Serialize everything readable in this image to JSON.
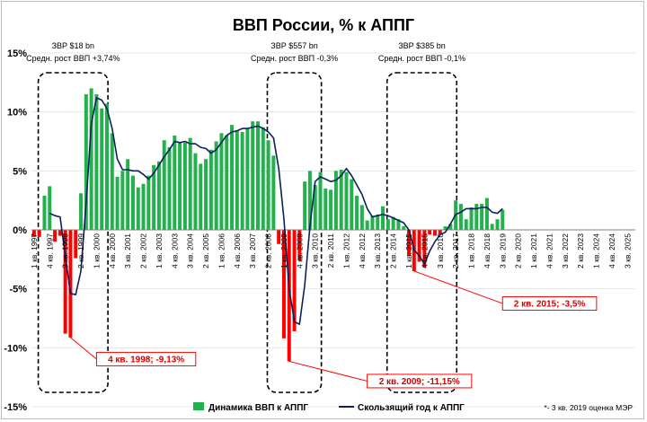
{
  "chart_data": {
    "type": "bar",
    "title": "ВВП России, % к АППГ",
    "ylim": [
      -15,
      15
    ],
    "yticks": [
      {
        "value": 15,
        "label": "15%"
      },
      {
        "value": 10,
        "label": "10%"
      },
      {
        "value": 5,
        "label": "5%"
      },
      {
        "value": 0,
        "label": "0%"
      },
      {
        "value": -5,
        "label": "-5%"
      },
      {
        "value": -10,
        "label": "-10%"
      },
      {
        "value": -15,
        "label": "-15%"
      }
    ],
    "x_start": "1997 Q1",
    "x_end": "2025 Q4",
    "xtick_labels": [
      "1 кв. 1997",
      "4 кв. 1997",
      "3 кв. 1998",
      "2 кв. 1999",
      "1 кв. 2000",
      "4 кв. 2000",
      "3 кв. 2001",
      "2 кв. 2002",
      "1 кв. 2003",
      "4 кв. 2003",
      "3 кв. 2004",
      "2 кв. 2005",
      "1 кв. 2006",
      "4 кв. 2006",
      "3 кв. 2007",
      "2 кв. 2008",
      "1 кв. 2009",
      "4 кв. 2009",
      "3 кв. 2010",
      "2 кв. 2011",
      "1 кв. 2012",
      "4 кв. 2012",
      "3 кв. 2013",
      "2 кв. 2014",
      "1 кв. 2015",
      "4 кв. 2015",
      "3 кв. 2016",
      "2 кв. 2017",
      "1 кв. 2018",
      "4 кв. 2018",
      "3 кв. 2019",
      "2 кв. 2020",
      "1 кв. 2021",
      "4 кв. 2021",
      "3 кв. 2022",
      "2 кв. 2023",
      "1 кв. 2024",
      "4 кв. 2024",
      "3 кв. 2025"
    ],
    "series": [
      {
        "name": "Динамика ВВП к АППГ",
        "color_positive": "#22b14c",
        "color_negative": "#ff0000",
        "values": [
          -0.6,
          -0.6,
          2.9,
          3.7,
          -1.0,
          -0.5,
          -8.8,
          -9.13,
          -2.4,
          3.1,
          11.5,
          12.0,
          11.5,
          10.3,
          10.7,
          8.2,
          4.5,
          5.0,
          6.0,
          4.6,
          3.6,
          3.9,
          4.6,
          5.5,
          5.8,
          7.6,
          7.0,
          8.0,
          7.4,
          7.4,
          7.8,
          6.5,
          5.6,
          6.0,
          6.8,
          7.5,
          8.2,
          8.0,
          8.9,
          8.4,
          8.3,
          8.6,
          9.2,
          9.2,
          8.7,
          7.6,
          6.3,
          -1.2,
          -9.2,
          -11.15,
          -8.6,
          -2.6,
          4.1,
          5.0,
          3.8,
          4.9,
          3.5,
          3.4,
          5.0,
          5.1,
          4.9,
          4.3,
          2.9,
          2.1,
          0.8,
          1.2,
          1.3,
          2.0,
          0.9,
          1.1,
          0.9,
          0.3,
          -2.2,
          -3.5,
          -2.7,
          -3.2,
          -0.4,
          -0.5,
          -0.4,
          0.3,
          0.5,
          2.5,
          2.2,
          0.9,
          1.9,
          2.2,
          2.2,
          2.7,
          0.5,
          0.9,
          1.7
        ]
      },
      {
        "name": "Скользящий год к АППГ",
        "color": "#0b1f5c",
        "values": [
          null,
          null,
          null,
          1.4,
          1.2,
          1.1,
          -2.2,
          -5.4,
          -5.5,
          -3.5,
          2.2,
          9.0,
          11.2,
          11.0,
          10.3,
          8.6,
          6.0,
          5.1,
          5.1,
          5.0,
          5.0,
          4.7,
          4.3,
          4.8,
          5.5,
          6.2,
          6.8,
          7.5,
          7.4,
          7.5,
          7.3,
          7.3,
          7.0,
          6.9,
          6.5,
          6.8,
          7.4,
          8.0,
          8.3,
          8.4,
          8.6,
          8.6,
          8.7,
          8.8,
          8.6,
          8.3,
          7.8,
          5.2,
          0.9,
          -5.0,
          -7.8,
          -8.0,
          -4.7,
          0.3,
          4.1,
          4.5,
          4.3,
          4.1,
          4.2,
          4.6,
          5.2,
          4.6,
          3.8,
          3.0,
          1.8,
          1.1,
          1.2,
          1.3,
          1.2,
          1.0,
          0.8,
          0.6,
          0.0,
          -1.7,
          -2.2,
          -2.9,
          -1.8,
          -1.0,
          -0.4,
          -0.2,
          0.5,
          1.3,
          1.5,
          1.8,
          1.8,
          1.8,
          1.9,
          1.9,
          1.5,
          1.4,
          1.8
        ]
      }
    ],
    "crisis_boxes": [
      {
        "from": "1997 Q3",
        "to": "2000 Q2",
        "line1": "ЗВР $18 bn",
        "line2": "Средн. рост ВВП +3,74%"
      },
      {
        "from": "2008 Q3",
        "to": "2010 Q3",
        "line1": "ЗВР $557 bn",
        "line2": "Средн. рост ВВП -0,3%"
      },
      {
        "from": "2014 Q2",
        "to": "2017 Q1",
        "line1": "ЗВР $385 bn",
        "line2": "Средн. рост ВВП -0,1%"
      }
    ],
    "callouts": [
      {
        "point": "1998 Q4",
        "text": "4 кв. 1998; -9,13%"
      },
      {
        "point": "2009 Q2",
        "text": "2 кв. 2009; -11,15%"
      },
      {
        "point": "2015 Q2",
        "text": "2 кв. 2015; -3,5%"
      }
    ],
    "footnote": "*- 3 кв. 2019 оценка МЭР"
  }
}
